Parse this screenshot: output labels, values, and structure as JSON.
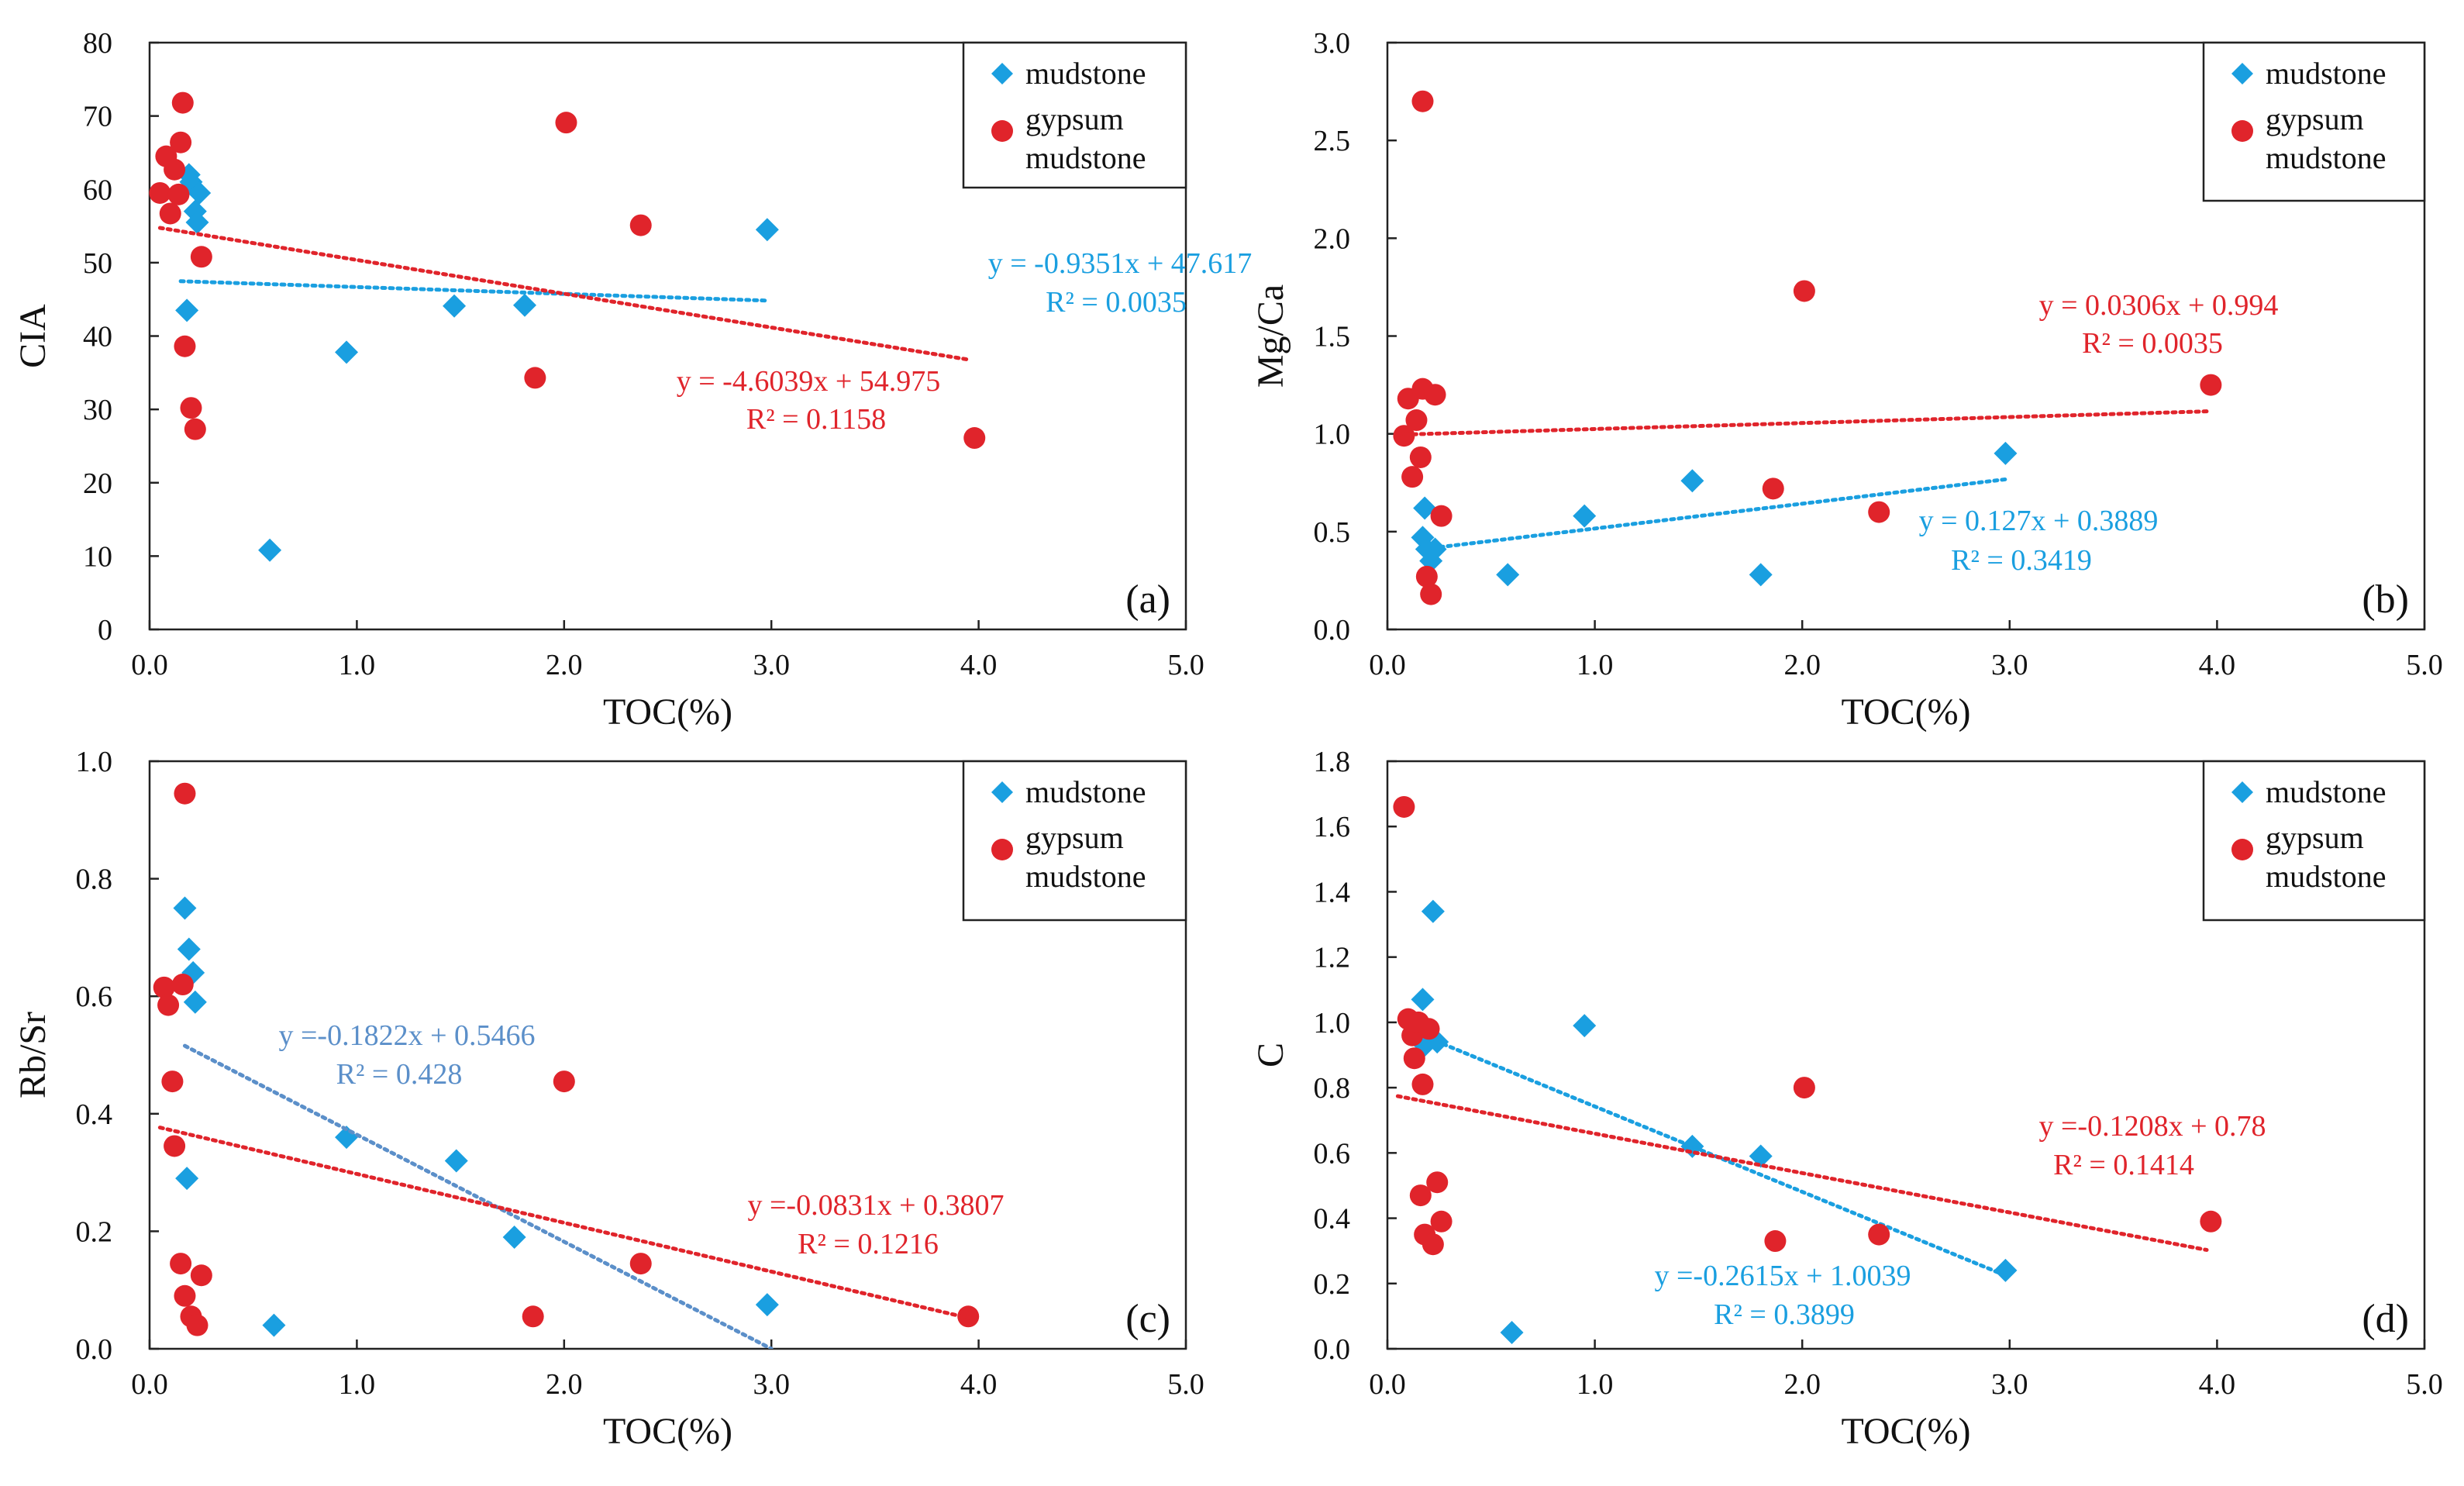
{
  "colors": {
    "mudstone": "#1a9fe0",
    "gypsum": "#e0242b",
    "mudstone_fit_c": "#5b8fc9"
  },
  "legend": {
    "mudstone": "mudstone",
    "gypsum_line1": "gypsum",
    "gypsum_line2": "mudstone"
  },
  "chart_data": [
    {
      "id": "a",
      "type": "scatter",
      "panel_label": "(a)",
      "xlabel": "TOC(%)",
      "ylabel": "CIA",
      "xlim": [
        0,
        5
      ],
      "ylim": [
        0,
        80
      ],
      "xticks": [
        0,
        1,
        2,
        3,
        4,
        5
      ],
      "xtick_labels": [
        "0.0",
        "1.0",
        "2.0",
        "3.0",
        "4.0",
        "5.0"
      ],
      "yticks": [
        0,
        10,
        20,
        30,
        40,
        50,
        60,
        70,
        80
      ],
      "ytick_labels": [
        "0",
        "10",
        "20",
        "30",
        "40",
        "50",
        "60",
        "70",
        "80"
      ],
      "series": [
        {
          "name": "mudstone",
          "marker": "diamond",
          "points": [
            [
              0.18,
              43.5
            ],
            [
              0.19,
              62
            ],
            [
              0.2,
              61
            ],
            [
              0.22,
              57
            ],
            [
              0.23,
              55.5
            ],
            [
              0.24,
              59.5
            ],
            [
              0.58,
              10.8
            ],
            [
              0.95,
              37.8
            ],
            [
              1.47,
              44.1
            ],
            [
              1.81,
              44.2
            ],
            [
              2.98,
              54.5
            ]
          ],
          "fit": {
            "slope": -0.9351,
            "intercept": 47.617,
            "x_range": [
              0.15,
              2.98
            ]
          },
          "equation": "y = -0.9351x + 47.617",
          "r2": "R² = 0.0035"
        },
        {
          "name": "gypsum mudstone",
          "marker": "circle",
          "points": [
            [
              0.05,
              59.5
            ],
            [
              0.08,
              64.5
            ],
            [
              0.1,
              56.7
            ],
            [
              0.12,
              62.7
            ],
            [
              0.14,
              59.3
            ],
            [
              0.15,
              66.4
            ],
            [
              0.16,
              71.8
            ],
            [
              0.17,
              38.6
            ],
            [
              0.2,
              30.2
            ],
            [
              0.22,
              27.3
            ],
            [
              0.25,
              50.8
            ],
            [
              1.86,
              34.3
            ],
            [
              2.01,
              69.1
            ],
            [
              2.37,
              55.1
            ],
            [
              3.98,
              26.1
            ]
          ],
          "fit": {
            "slope": -4.6039,
            "intercept": 54.975,
            "x_range": [
              0.05,
              3.95
            ]
          },
          "equation": "y = -4.6039x + 54.975",
          "r2": "R² = 0.1158"
        }
      ]
    },
    {
      "id": "b",
      "type": "scatter",
      "panel_label": "(b)",
      "xlabel": "TOC(%)",
      "ylabel": "Mg/Ca",
      "xlim": [
        0,
        5
      ],
      "ylim": [
        0,
        3
      ],
      "xticks": [
        0,
        1,
        2,
        3,
        4,
        5
      ],
      "xtick_labels": [
        "0.0",
        "1.0",
        "2.0",
        "3.0",
        "4.0",
        "5.0"
      ],
      "yticks": [
        0,
        0.5,
        1,
        1.5,
        2,
        2.5,
        3
      ],
      "ytick_labels": [
        "0.0",
        "0.5",
        "1.0",
        "1.5",
        "2.0",
        "2.5",
        "3.0"
      ],
      "series": [
        {
          "name": "mudstone",
          "marker": "diamond",
          "points": [
            [
              0.17,
              0.47
            ],
            [
              0.18,
              0.62
            ],
            [
              0.19,
              0.41
            ],
            [
              0.21,
              0.35
            ],
            [
              0.23,
              0.41
            ],
            [
              0.58,
              0.28
            ],
            [
              0.95,
              0.58
            ],
            [
              1.47,
              0.76
            ],
            [
              1.8,
              0.28
            ],
            [
              2.98,
              0.9
            ]
          ],
          "fit": {
            "slope": 0.127,
            "intercept": 0.3889,
            "x_range": [
              0.18,
              2.98
            ]
          },
          "equation": "y = 0.127x + 0.3889",
          "r2": "R² = 0.3419"
        },
        {
          "name": "gypsum mudstone",
          "marker": "circle",
          "points": [
            [
              0.08,
              0.99
            ],
            [
              0.1,
              1.18
            ],
            [
              0.12,
              0.78
            ],
            [
              0.14,
              1.07
            ],
            [
              0.16,
              0.88
            ],
            [
              0.17,
              1.23
            ],
            [
              0.17,
              2.7
            ],
            [
              0.19,
              0.27
            ],
            [
              0.21,
              0.18
            ],
            [
              0.23,
              1.2
            ],
            [
              0.26,
              0.58
            ],
            [
              1.86,
              0.72
            ],
            [
              2.01,
              1.73
            ],
            [
              2.37,
              0.6
            ],
            [
              3.97,
              1.25
            ]
          ],
          "fit": {
            "slope": 0.0306,
            "intercept": 0.994,
            "x_range": [
              0.05,
              3.97
            ]
          },
          "equation": "y = 0.0306x + 0.994",
          "r2": "R² = 0.0035"
        }
      ]
    },
    {
      "id": "c",
      "type": "scatter",
      "panel_label": "(c)",
      "xlabel": "TOC(%)",
      "ylabel": "Rb/Sr",
      "xlim": [
        0,
        5
      ],
      "ylim": [
        0,
        1
      ],
      "xticks": [
        0,
        1,
        2,
        3,
        4,
        5
      ],
      "xtick_labels": [
        "0.0",
        "1.0",
        "2.0",
        "3.0",
        "4.0",
        "5.0"
      ],
      "yticks": [
        0,
        0.2,
        0.4,
        0.6,
        0.8,
        1
      ],
      "ytick_labels": [
        "0.0",
        "0.2",
        "0.4",
        "0.6",
        "0.8",
        "1.0"
      ],
      "series": [
        {
          "name": "mudstone",
          "marker": "diamond",
          "points": [
            [
              0.17,
              0.75
            ],
            [
              0.18,
              0.29
            ],
            [
              0.19,
              0.68
            ],
            [
              0.21,
              0.64
            ],
            [
              0.22,
              0.59
            ],
            [
              0.6,
              0.04
            ],
            [
              0.95,
              0.36
            ],
            [
              1.48,
              0.32
            ],
            [
              1.76,
              0.19
            ],
            [
              2.98,
              0.075
            ]
          ],
          "fit": {
            "slope": -0.1822,
            "intercept": 0.5466,
            "x_range": [
              0.17,
              3.0
            ]
          },
          "equation": "y =-0.1822x + 0.5466",
          "r2": "R² = 0.428"
        },
        {
          "name": "gypsum mudstone",
          "marker": "circle",
          "points": [
            [
              0.07,
              0.615
            ],
            [
              0.09,
              0.585
            ],
            [
              0.11,
              0.455
            ],
            [
              0.12,
              0.345
            ],
            [
              0.15,
              0.145
            ],
            [
              0.16,
              0.62
            ],
            [
              0.17,
              0.09
            ],
            [
              0.17,
              0.945
            ],
            [
              0.2,
              0.055
            ],
            [
              0.23,
              0.04
            ],
            [
              0.25,
              0.125
            ],
            [
              1.85,
              0.055
            ],
            [
              2.0,
              0.455
            ],
            [
              2.37,
              0.145
            ],
            [
              3.95,
              0.055
            ]
          ],
          "fit": {
            "slope": -0.0831,
            "intercept": 0.3807,
            "x_range": [
              0.05,
              3.95
            ]
          },
          "equation": "y =-0.0831x + 0.3807",
          "r2": "R² = 0.1216"
        }
      ]
    },
    {
      "id": "d",
      "type": "scatter",
      "panel_label": "(d)",
      "xlabel": "TOC(%)",
      "ylabel": "C",
      "xlim": [
        0,
        5
      ],
      "ylim": [
        0,
        1.8
      ],
      "xticks": [
        0,
        1,
        2,
        3,
        4,
        5
      ],
      "xtick_labels": [
        "0.0",
        "1.0",
        "2.0",
        "3.0",
        "4.0",
        "5.0"
      ],
      "yticks": [
        0,
        0.2,
        0.4,
        0.6,
        0.8,
        1,
        1.2,
        1.4,
        1.6,
        1.8
      ],
      "ytick_labels": [
        "0.0",
        "0.2",
        "0.4",
        "0.6",
        "0.8",
        "1.0",
        "1.2",
        "1.4",
        "1.6",
        "1.8"
      ],
      "series": [
        {
          "name": "mudstone",
          "marker": "diamond",
          "points": [
            [
              0.17,
              1.07
            ],
            [
              0.18,
              0.93
            ],
            [
              0.2,
              0.96
            ],
            [
              0.22,
              1.34
            ],
            [
              0.24,
              0.94
            ],
            [
              0.6,
              0.05
            ],
            [
              0.95,
              0.99
            ],
            [
              1.47,
              0.62
            ],
            [
              1.8,
              0.59
            ],
            [
              2.98,
              0.24
            ]
          ],
          "fit": {
            "slope": -0.2615,
            "intercept": 1.0039,
            "x_range": [
              0.2,
              2.98
            ]
          },
          "equation": "y =-0.2615x + 1.0039",
          "r2": "R² = 0.3899"
        },
        {
          "name": "gypsum mudstone",
          "marker": "circle",
          "points": [
            [
              0.08,
              1.66
            ],
            [
              0.1,
              1.01
            ],
            [
              0.12,
              0.96
            ],
            [
              0.13,
              0.89
            ],
            [
              0.15,
              1.0
            ],
            [
              0.16,
              0.47
            ],
            [
              0.17,
              0.81
            ],
            [
              0.18,
              0.35
            ],
            [
              0.2,
              0.98
            ],
            [
              0.22,
              0.32
            ],
            [
              0.24,
              0.51
            ],
            [
              0.26,
              0.39
            ],
            [
              1.87,
              0.33
            ],
            [
              2.01,
              0.8
            ],
            [
              2.37,
              0.35
            ],
            [
              3.97,
              0.39
            ]
          ],
          "fit": {
            "slope": -0.1208,
            "intercept": 0.78,
            "x_range": [
              0.05,
              3.95
            ]
          },
          "equation": "y =-0.1208x + 0.78",
          "r2": "R² = 0.1414"
        }
      ]
    }
  ]
}
